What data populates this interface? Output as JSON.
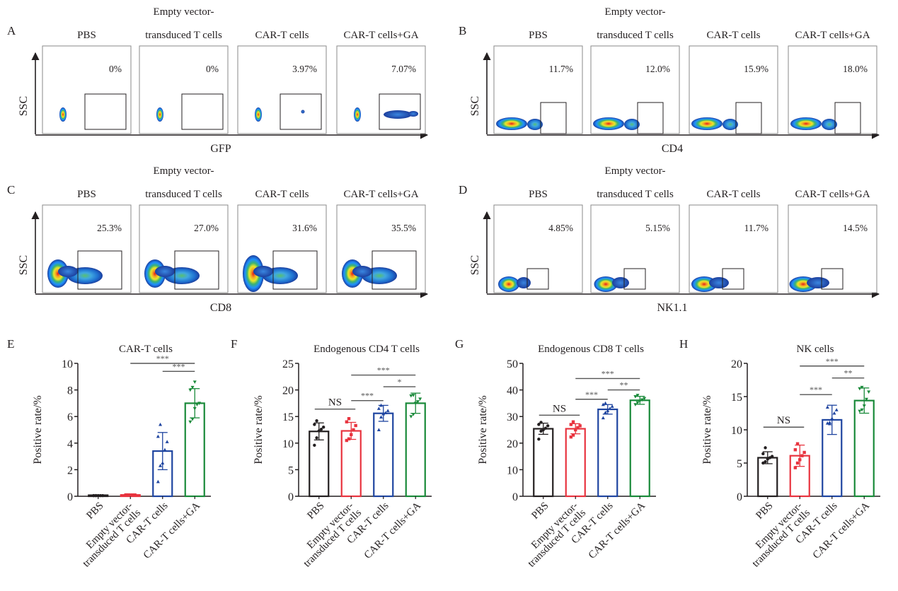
{
  "groups": [
    "PBS",
    "Empty vector-transduced T cells",
    "CAR-T cells",
    "CAR-T cells+GA"
  ],
  "group_title_lines": [
    [
      "PBS"
    ],
    [
      "Empty vector-",
      "transduced T cells"
    ],
    [
      "CAR-T cells"
    ],
    [
      "CAR-T cells+GA"
    ]
  ],
  "colors": {
    "PBS": "#231f20",
    "Empty vector-transduced T cells": "#e8343f",
    "CAR-T cells": "#1f45a0",
    "CAR-T cells+GA": "#1a8a3a"
  },
  "flow_panels": [
    {
      "letter": "A",
      "x_axis": "GFP",
      "y_axis": "SSC",
      "percentages": [
        "0%",
        "0%",
        "3.97%",
        "7.07%"
      ],
      "marker": "GFP"
    },
    {
      "letter": "B",
      "x_axis": "CD4",
      "y_axis": "SSC",
      "percentages": [
        "11.7%",
        "12.0%",
        "15.9%",
        "18.0%"
      ],
      "marker": "CD4"
    },
    {
      "letter": "C",
      "x_axis": "CD8",
      "y_axis": "SSC",
      "percentages": [
        "25.3%",
        "27.0%",
        "31.6%",
        "35.5%"
      ],
      "marker": "CD8"
    },
    {
      "letter": "D",
      "x_axis": "NK1.1",
      "y_axis": "SSC",
      "percentages": [
        "4.85%",
        "5.15%",
        "11.7%",
        "14.5%"
      ],
      "marker": "NK1.1"
    }
  ],
  "chart_data": [
    {
      "letter": "E",
      "type": "bar",
      "title": "CAR-T cells",
      "ylabel": "Positive rate/%",
      "ylim": [
        0,
        10
      ],
      "yticks": [
        0,
        2,
        4,
        6,
        8,
        10
      ],
      "categories": [
        "PBS",
        "Empty vector-transduced T cells",
        "CAR-T cells",
        "CAR-T cells+GA"
      ],
      "values": [
        0.05,
        0.1,
        3.4,
        7.0
      ],
      "sd": [
        0,
        0,
        1.4,
        1.1
      ],
      "points": [
        [
          0.05,
          0.05,
          0.05,
          0.05,
          0.05,
          0.05,
          0.05
        ],
        [
          0.1,
          0.1,
          0.1,
          0.1,
          0.1,
          0.1,
          0.1
        ],
        [
          1.1,
          2.3,
          2.5,
          3.5,
          4.1,
          4.5,
          5.4
        ],
        [
          5.6,
          5.8,
          6.6,
          6.9,
          7.0,
          8.0,
          8.2,
          8.6
        ]
      ],
      "comparisons": [
        {
          "from": 2,
          "to": 3,
          "label": "***",
          "y": 9.4
        },
        {
          "from": 1,
          "to": 3,
          "label": "***",
          "y": 10.0
        }
      ]
    },
    {
      "letter": "F",
      "type": "bar",
      "title": "Endogenous CD4 T cells",
      "ylabel": "Positive rate/%",
      "ylim": [
        0,
        25
      ],
      "yticks": [
        0,
        5,
        10,
        15,
        20,
        25
      ],
      "categories": [
        "PBS",
        "Empty vector-transduced T cells",
        "CAR-T cells",
        "CAR-T cells+GA"
      ],
      "values": [
        12.2,
        12.3,
        15.6,
        17.5
      ],
      "sd": [
        1.6,
        1.6,
        1.5,
        1.9
      ],
      "points": [
        [
          9.6,
          11.0,
          12.3,
          12.6,
          13.0,
          13.5,
          14.2
        ],
        [
          10.5,
          10.8,
          11.6,
          12.5,
          13.3,
          14.0,
          14.6
        ],
        [
          12.5,
          14.9,
          15.5,
          15.7,
          16.1,
          16.5,
          17.1
        ],
        [
          15.0,
          15.4,
          17.5,
          17.8,
          18.3,
          18.9,
          19.0
        ]
      ],
      "comparisons": [
        {
          "from": 0,
          "to": 1,
          "label": "NS",
          "y": 16.4
        },
        {
          "from": 1,
          "to": 2,
          "label": "***",
          "y": 18.0
        },
        {
          "from": 2,
          "to": 3,
          "label": "*",
          "y": 20.6
        },
        {
          "from": 1,
          "to": 3,
          "label": "***",
          "y": 22.8
        }
      ]
    },
    {
      "letter": "G",
      "type": "bar",
      "title": "Endogenous CD8 T cells",
      "ylabel": "Positive rate/%",
      "ylim": [
        0,
        50
      ],
      "yticks": [
        0,
        10,
        20,
        30,
        40,
        50
      ],
      "categories": [
        "PBS",
        "Empty vector-transduced T cells",
        "CAR-T cells",
        "CAR-T cells+GA"
      ],
      "values": [
        25.4,
        25.4,
        32.7,
        36.1
      ],
      "sd": [
        2.1,
        1.9,
        1.8,
        1.5
      ],
      "points": [
        [
          21.5,
          24.5,
          25.0,
          25.6,
          26.5,
          27.0,
          27.8
        ],
        [
          22.3,
          23.0,
          25.0,
          25.8,
          26.5,
          27.0,
          28.0
        ],
        [
          29.5,
          31.5,
          32.2,
          33.0,
          33.8,
          34.5,
          35.0
        ],
        [
          34.5,
          35.2,
          35.8,
          36.3,
          36.8,
          37.5,
          38.0
        ]
      ],
      "comparisons": [
        {
          "from": 0,
          "to": 1,
          "label": "NS",
          "y": 30.5
        },
        {
          "from": 1,
          "to": 2,
          "label": "***",
          "y": 36.5
        },
        {
          "from": 2,
          "to": 3,
          "label": "**",
          "y": 40.0
        },
        {
          "from": 1,
          "to": 3,
          "label": "***",
          "y": 44.3
        }
      ]
    },
    {
      "letter": "H",
      "type": "bar",
      "title": "NK cells",
      "ylabel": "Positive rate/%",
      "ylim": [
        0,
        20
      ],
      "yticks": [
        0,
        5,
        10,
        15,
        20
      ],
      "categories": [
        "PBS",
        "Empty vector-transduced T cells",
        "CAR-T cells",
        "CAR-T cells+GA"
      ],
      "values": [
        5.8,
        6.1,
        11.5,
        14.4
      ],
      "sd": [
        0.9,
        1.6,
        2.2,
        1.9
      ],
      "points": [
        [
          5.0,
          5.2,
          5.6,
          5.8,
          6.0,
          6.4,
          7.3
        ],
        [
          4.3,
          5.0,
          5.5,
          6.1,
          6.6,
          7.0,
          7.9
        ],
        [
          11.0,
          11.1,
          11.7,
          12.5,
          13.0,
          13.4,
          10.9
        ],
        [
          12.8,
          13.0,
          13.6,
          14.6,
          15.7,
          16.2,
          16.4
        ]
      ],
      "comparisons": [
        {
          "from": 0,
          "to": 1,
          "label": "NS",
          "y": 10.4
        },
        {
          "from": 1,
          "to": 2,
          "label": "***",
          "y": 15.3
        },
        {
          "from": 2,
          "to": 3,
          "label": "**",
          "y": 17.8
        },
        {
          "from": 1,
          "to": 3,
          "label": "***",
          "y": 19.6
        }
      ]
    }
  ]
}
